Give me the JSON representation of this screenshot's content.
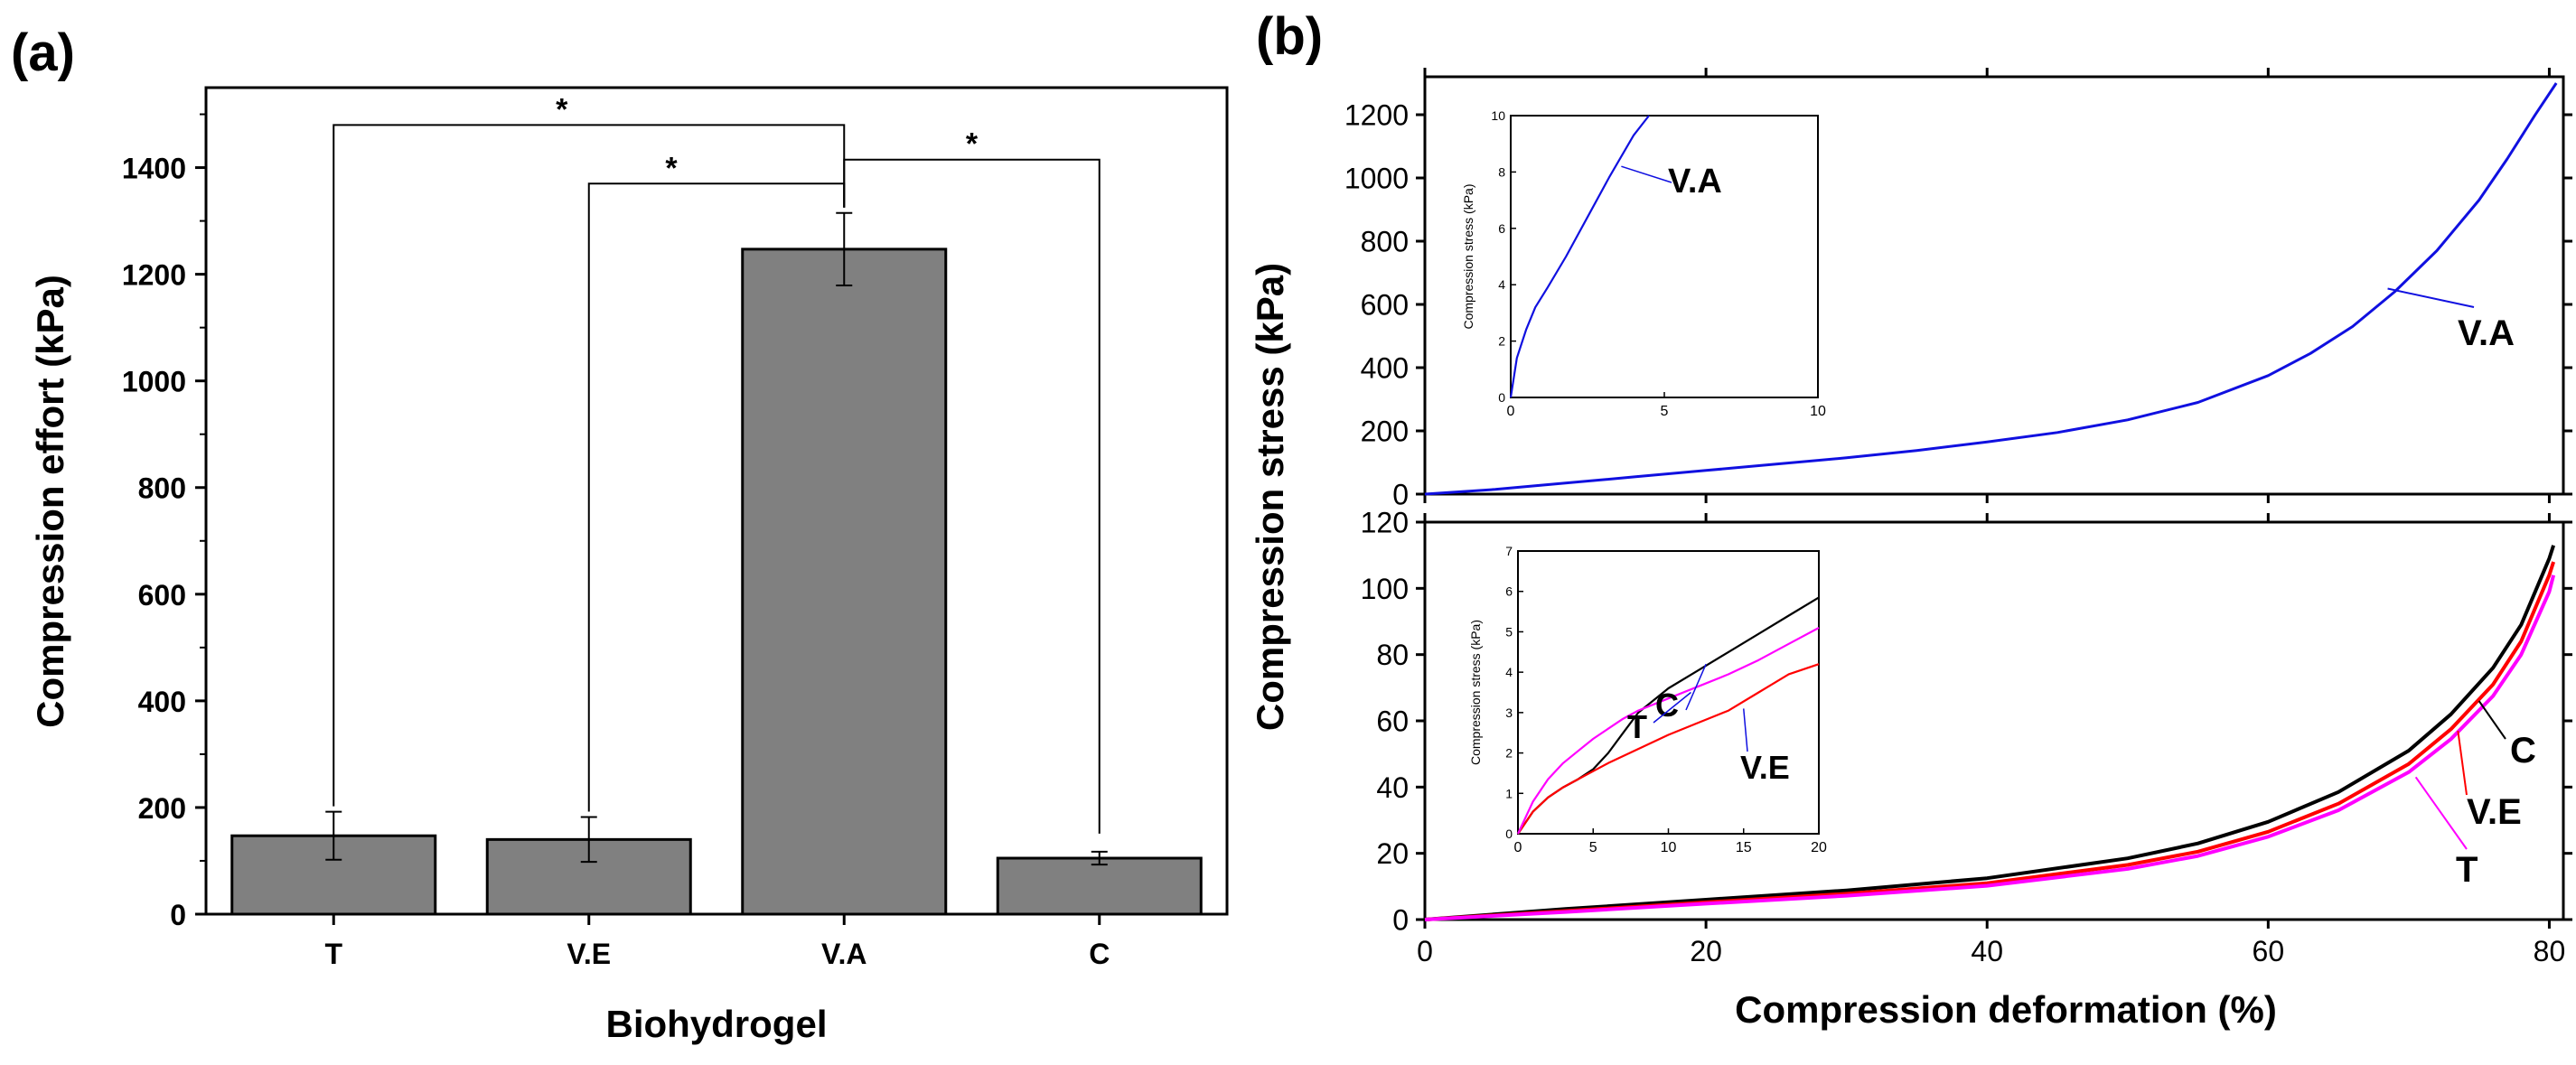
{
  "chart_data": [
    {
      "id": "a",
      "type": "bar",
      "panel_label": "(a)",
      "title": "",
      "xlabel": "Biohydrogel",
      "ylabel": "Compression effort (kPa)",
      "categories": [
        "T",
        "V.E",
        "V.A",
        "C"
      ],
      "values": [
        147,
        140,
        1247,
        105
      ],
      "errors": [
        45,
        42,
        68,
        12
      ],
      "ylim": [
        0,
        1550
      ],
      "yticks": [
        0,
        200,
        400,
        600,
        800,
        1000,
        1200,
        1400
      ],
      "bar_color": "#808080",
      "significance": [
        {
          "from": "T",
          "to": "V.A",
          "label": "*"
        },
        {
          "from": "V.E",
          "to": "V.A",
          "label": "*"
        },
        {
          "from": "V.A",
          "to": "C",
          "label": "*"
        }
      ]
    },
    {
      "id": "b-top",
      "type": "line",
      "panel_label": "(b)",
      "xlabel": "",
      "ylabel": "Compression stress (kPa)",
      "xlim": [
        0,
        81
      ],
      "ylim": [
        0,
        1320
      ],
      "yticks": [
        0,
        200,
        400,
        600,
        800,
        1000,
        1200
      ],
      "series": [
        {
          "name": "V.A",
          "color": "#1010e0",
          "x": [
            0,
            5,
            10,
            15,
            20,
            25,
            30,
            35,
            40,
            45,
            50,
            55,
            60,
            63,
            66,
            69,
            72,
            75,
            77,
            79,
            80.5
          ],
          "y": [
            0,
            15,
            35,
            55,
            75,
            95,
            115,
            138,
            165,
            195,
            235,
            290,
            375,
            445,
            530,
            640,
            770,
            930,
            1060,
            1200,
            1300
          ]
        }
      ],
      "inset": {
        "xlim": [
          0,
          10
        ],
        "ylim": [
          0,
          10
        ],
        "xticks": [
          0,
          5,
          10
        ],
        "yticks": [
          0,
          2,
          4,
          6,
          8,
          10
        ],
        "ylabel": "Compression stress (kPa)",
        "series": [
          {
            "name": "V.A",
            "color": "#1010e0",
            "x": [
              0,
              0.2,
              0.5,
              0.8,
              1.2,
              1.8,
              2.5,
              3.2,
              4.0,
              4.5
            ],
            "y": [
              0,
              1.4,
              2.4,
              3.2,
              3.9,
              5.0,
              6.4,
              7.8,
              9.3,
              10.0
            ]
          }
        ]
      }
    },
    {
      "id": "b-bottom",
      "type": "line",
      "xlabel": "Compression deformation (%)",
      "ylabel": "",
      "xlim": [
        0,
        81
      ],
      "ylim": [
        0,
        120
      ],
      "xticks": [
        0,
        20,
        40,
        60,
        80
      ],
      "yticks": [
        0,
        20,
        40,
        60,
        80,
        100,
        120
      ],
      "series": [
        {
          "name": "C",
          "color": "#000000",
          "x": [
            0,
            10,
            20,
            30,
            40,
            50,
            55,
            60,
            65,
            70,
            73,
            76,
            78,
            80,
            80.3
          ],
          "y": [
            0,
            3.2,
            6.0,
            8.8,
            12.5,
            18.5,
            23,
            29.5,
            38.5,
            51,
            62,
            76,
            89,
            109,
            113
          ]
        },
        {
          "name": "V.E",
          "color": "#ff0000",
          "x": [
            0,
            10,
            20,
            30,
            40,
            50,
            55,
            60,
            65,
            70,
            73,
            76,
            78,
            80,
            80.3
          ],
          "y": [
            0,
            2.6,
            5.2,
            7.8,
            11.0,
            16.5,
            20.5,
            26.5,
            35,
            47,
            57.5,
            71,
            84,
            104,
            108
          ]
        },
        {
          "name": "T",
          "color": "#ff00ff",
          "x": [
            0,
            10,
            20,
            30,
            40,
            50,
            55,
            60,
            65,
            70,
            73,
            76,
            78,
            80,
            80.3
          ],
          "y": [
            0,
            2.3,
            4.8,
            7.2,
            10.2,
            15.3,
            19.2,
            25,
            33,
            44.5,
            54.5,
            67.5,
            80,
            99,
            104
          ]
        }
      ],
      "labels": {
        "C": "C",
        "V.E": "V.E",
        "T": "T"
      },
      "inset": {
        "xlim": [
          0,
          20
        ],
        "ylim": [
          0,
          7
        ],
        "xticks": [
          0,
          5,
          10,
          15,
          20
        ],
        "yticks": [
          0,
          1,
          2,
          3,
          4,
          5,
          6,
          7
        ],
        "ylabel": "Compression stress (kPa)",
        "series": [
          {
            "name": "C",
            "color": "#000000",
            "x": [
              0,
              1,
              2,
              3,
              4,
              5,
              6,
              7,
              8,
              10,
              12,
              14,
              16,
              18,
              20
            ],
            "y": [
              0,
              0.55,
              0.9,
              1.15,
              1.35,
              1.6,
              2.0,
              2.5,
              3.0,
              3.6,
              4.05,
              4.5,
              4.95,
              5.4,
              5.85
            ]
          },
          {
            "name": "V.E",
            "color": "#ff0000",
            "x": [
              0,
              1,
              2,
              3,
              4,
              5,
              6,
              8,
              10,
              12,
              14,
              16,
              18,
              20
            ],
            "y": [
              0,
              0.55,
              0.9,
              1.15,
              1.35,
              1.55,
              1.75,
              2.1,
              2.45,
              2.75,
              3.05,
              3.5,
              3.95,
              4.2
            ]
          },
          {
            "name": "T",
            "color": "#ff00ff",
            "x": [
              0,
              1,
              2,
              3,
              4,
              5,
              6,
              7,
              8,
              10,
              12,
              14,
              16,
              18,
              20
            ],
            "y": [
              0,
              0.8,
              1.35,
              1.75,
              2.05,
              2.35,
              2.6,
              2.85,
              3.05,
              3.35,
              3.65,
              3.95,
              4.3,
              4.7,
              5.1
            ]
          }
        ],
        "labels": {
          "C": "C",
          "T": "T",
          "V.E": "V.E"
        }
      }
    }
  ]
}
